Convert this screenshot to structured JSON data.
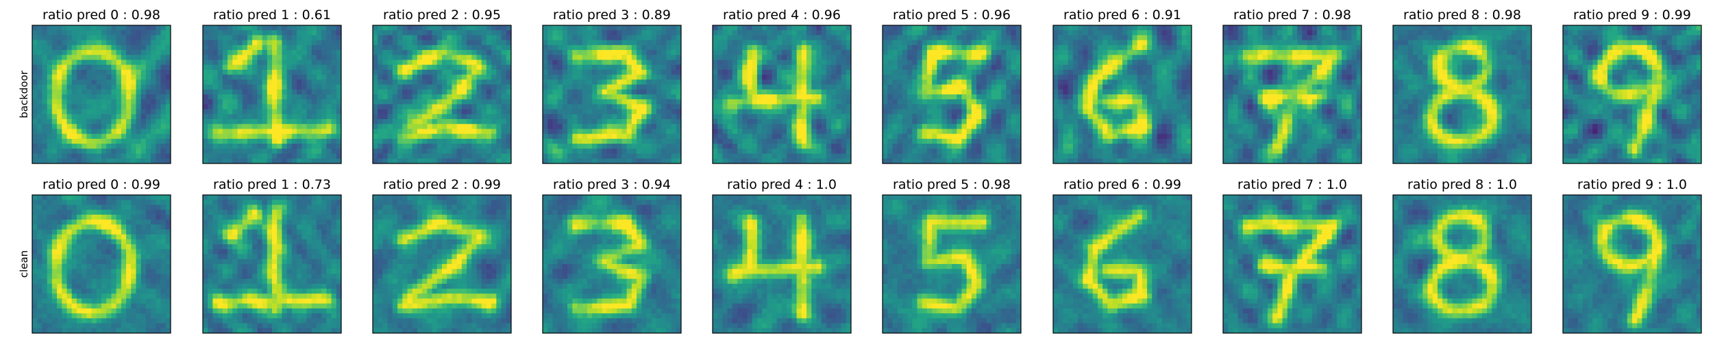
{
  "chart_data": {
    "type": "heatmap",
    "colormap": "viridis",
    "rows": [
      {
        "label": "backdoor",
        "panels": [
          {
            "title": "ratio pred 0 : 0.98",
            "pattern": "digit-0"
          },
          {
            "title": "ratio pred 1 : 0.61",
            "pattern": "digit-1"
          },
          {
            "title": "ratio pred 2 : 0.95",
            "pattern": "digit-2"
          },
          {
            "title": "ratio pred 3 : 0.89",
            "pattern": "digit-3"
          },
          {
            "title": "ratio pred 4 : 0.96",
            "pattern": "digit-4"
          },
          {
            "title": "ratio pred 5 : 0.96",
            "pattern": "digit-5"
          },
          {
            "title": "ratio pred 6 : 0.91",
            "pattern": "digit-6"
          },
          {
            "title": "ratio pred 7 : 0.98",
            "pattern": "digit-7"
          },
          {
            "title": "ratio pred 8 : 0.98",
            "pattern": "digit-8"
          },
          {
            "title": "ratio pred 9 : 0.99",
            "pattern": "digit-9"
          }
        ]
      },
      {
        "label": "clean",
        "panels": [
          {
            "title": "ratio pred 0 : 0.99",
            "pattern": "digit-0"
          },
          {
            "title": "ratio pred 1 : 0.73",
            "pattern": "digit-1"
          },
          {
            "title": "ratio pred 2 : 0.99",
            "pattern": "digit-2"
          },
          {
            "title": "ratio pred 3 : 0.94",
            "pattern": "digit-3"
          },
          {
            "title": "ratio pred 4 :  1.0",
            "pattern": "digit-4"
          },
          {
            "title": "ratio pred 5 : 0.98",
            "pattern": "digit-5"
          },
          {
            "title": "ratio pred 6 : 0.99",
            "pattern": "digit-6"
          },
          {
            "title": "ratio pred 7 :  1.0",
            "pattern": "digit-7"
          },
          {
            "title": "ratio pred 8 :  1.0",
            "pattern": "digit-8"
          },
          {
            "title": "ratio pred 9 :  1.0",
            "pattern": "digit-9"
          }
        ]
      }
    ]
  }
}
